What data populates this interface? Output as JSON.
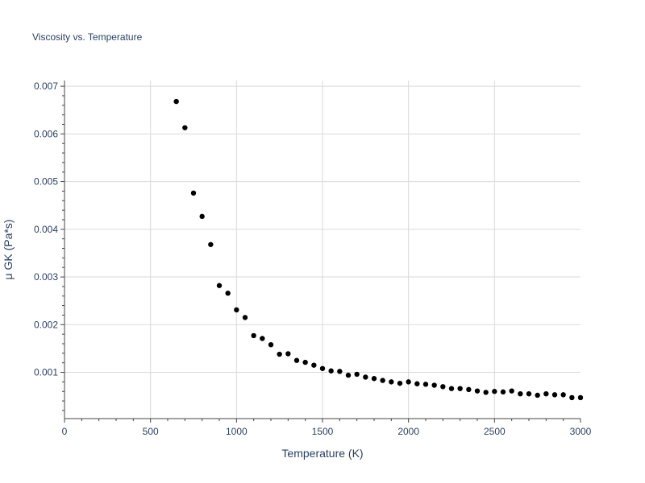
{
  "chart_data": {
    "type": "scatter",
    "title": "Viscosity vs. Temperature",
    "xlabel": "Temperature (K)",
    "ylabel": "μ GK (Pa*s)",
    "xlim": [
      0,
      3000
    ],
    "ylim": [
      3e-05,
      0.00712
    ],
    "xticks": [
      0,
      500,
      1000,
      1500,
      2000,
      2500,
      3000
    ],
    "xtick_labels": [
      "0",
      "500",
      "1000",
      "1500",
      "2000",
      "2500",
      "3000"
    ],
    "yticks": [
      0.001,
      0.002,
      0.003,
      0.004,
      0.005,
      0.006,
      0.007
    ],
    "ytick_labels": [
      "0.001",
      "0.002",
      "0.003",
      "0.004",
      "0.005",
      "0.006",
      "0.007"
    ],
    "grid": true,
    "marker_color": "#000000",
    "x": [
      650,
      700,
      750,
      800,
      850,
      900,
      950,
      1000,
      1050,
      1100,
      1150,
      1200,
      1250,
      1300,
      1350,
      1400,
      1450,
      1500,
      1550,
      1600,
      1650,
      1700,
      1750,
      1800,
      1850,
      1900,
      1950,
      2000,
      2050,
      2100,
      2150,
      2200,
      2250,
      2300,
      2350,
      2400,
      2450,
      2500,
      2550,
      2600,
      2650,
      2700,
      2750,
      2800,
      2850,
      2900,
      2950,
      3000
    ],
    "y": [
      0.00668,
      0.00613,
      0.00476,
      0.00427,
      0.00368,
      0.00282,
      0.00266,
      0.00231,
      0.00215,
      0.00177,
      0.00171,
      0.00158,
      0.00138,
      0.00139,
      0.00125,
      0.00121,
      0.00115,
      0.00108,
      0.00103,
      0.00102,
      0.00094,
      0.00096,
      0.0009,
      0.00087,
      0.00083,
      0.0008,
      0.00077,
      0.0008,
      0.00076,
      0.00075,
      0.00073,
      0.0007,
      0.00066,
      0.00066,
      0.00064,
      0.00061,
      0.00058,
      0.0006,
      0.00059,
      0.00061,
      0.00055,
      0.00055,
      0.00052,
      0.00055,
      0.00053,
      0.00053,
      0.00047,
      0.00047
    ]
  }
}
